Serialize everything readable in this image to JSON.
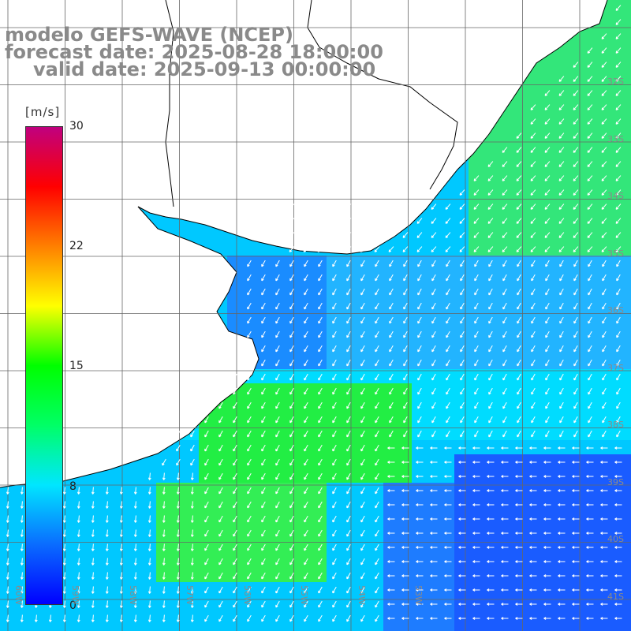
{
  "title": {
    "model": "modelo GEFS-WAVE (NCEP)",
    "forecast": "forecast date: 2025-08-28 18:00:00",
    "valid": "valid date: 2025-09-13 00:00:00"
  },
  "colorbar": {
    "units": "[m/s]",
    "ticks": [
      "30",
      "22",
      "15",
      "8",
      "0"
    ],
    "range": [
      0,
      30
    ],
    "gradient": [
      "#0000ff",
      "#0a6cff",
      "#00e6ff",
      "#00ff66",
      "#00ff00",
      "#ffff00",
      "#ff7f00",
      "#ff0000",
      "#c0007f"
    ]
  },
  "lat_labels": [
    "32S",
    "33S",
    "34S",
    "35S",
    "36S",
    "37S",
    "38S",
    "39S",
    "40S",
    "41S"
  ],
  "lon_labels": [
    "60W",
    "59W",
    "58W",
    "57W",
    "56W",
    "55W",
    "54W",
    "53W"
  ],
  "colors": {
    "land": "#ffffff",
    "grid": "#666666",
    "coast": "#000000",
    "arrow": "#ffffff",
    "label": "#8a8a8a"
  }
}
